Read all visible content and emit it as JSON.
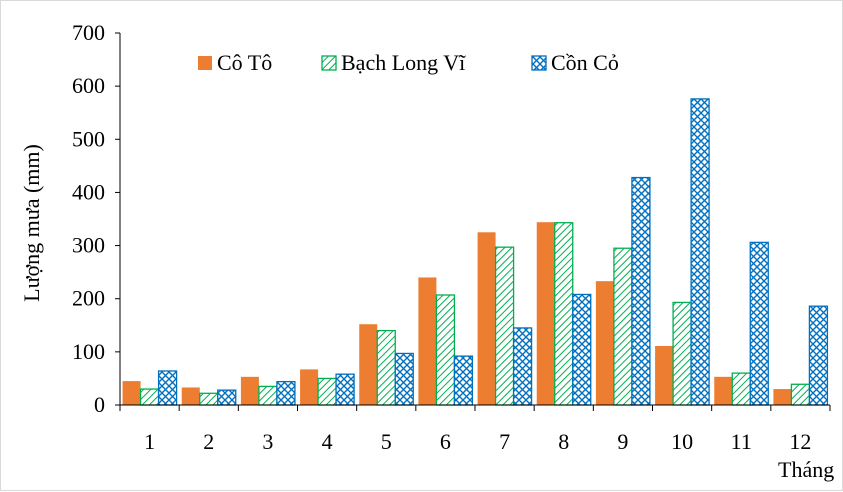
{
  "chart_data": {
    "type": "bar",
    "categories": [
      "1",
      "2",
      "3",
      "4",
      "5",
      "6",
      "7",
      "8",
      "9",
      "10",
      "11",
      "12"
    ],
    "series": [
      {
        "name": "Cô Tô",
        "values": [
          45,
          33,
          53,
          67,
          152,
          240,
          325,
          344,
          233,
          111,
          53,
          30
        ],
        "color": "#ED7D31",
        "pattern": "solid"
      },
      {
        "name": "Bạch Long Vĩ",
        "values": [
          30,
          22,
          35,
          50,
          140,
          207,
          297,
          343,
          295,
          193,
          60,
          39
        ],
        "color": "#00B050",
        "pattern": "diagonal-hatch"
      },
      {
        "name": "Cồn Cỏ",
        "values": [
          64,
          28,
          44,
          58,
          97,
          92,
          145,
          208,
          428,
          576,
          306,
          186
        ],
        "color": "#0070C0",
        "pattern": "crosshatch"
      }
    ],
    "title": "",
    "xlabel": "Tháng",
    "ylabel": "Lượng mưa (mm)",
    "ylim": [
      0,
      700
    ],
    "yticks": [
      0,
      100,
      200,
      300,
      400,
      500,
      600,
      700
    ],
    "grid": false,
    "legend_position": "top"
  }
}
